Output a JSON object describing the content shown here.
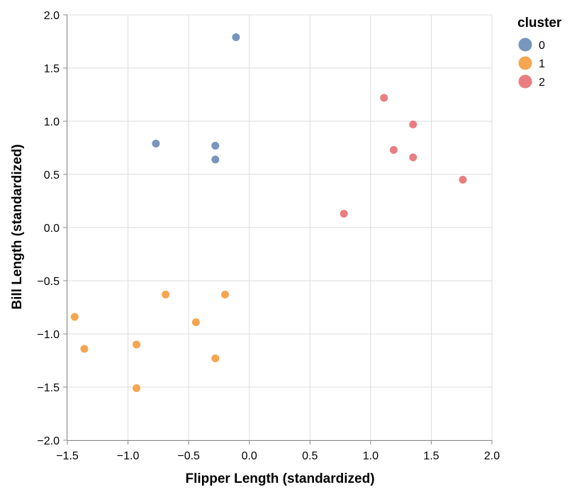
{
  "chart_data": {
    "type": "scatter",
    "xlabel": "Flipper Length (standardized)",
    "ylabel": "Bill Length (standardized)",
    "xlim": [
      -1.5,
      2.0
    ],
    "ylim": [
      -2.0,
      2.0
    ],
    "x_ticks": [
      "−1.5",
      "−1.0",
      "−0.5",
      "0.0",
      "0.5",
      "1.0",
      "1.5",
      "2.0"
    ],
    "x_tick_values": [
      -1.5,
      -1.0,
      -0.5,
      0.0,
      0.5,
      1.0,
      1.5,
      2.0
    ],
    "y_ticks": [
      "2.0",
      "1.5",
      "1.0",
      "0.5",
      "0.0",
      "−0.5",
      "−1.0",
      "−1.5",
      "−2.0"
    ],
    "y_tick_values": [
      2.0,
      1.5,
      1.0,
      0.5,
      0.0,
      -0.5,
      -1.0,
      -1.5,
      -2.0
    ],
    "grid": true,
    "legend": {
      "title": "cluster",
      "placement": "right",
      "entries": [
        {
          "label": "0",
          "color": "#7795bd"
        },
        {
          "label": "1",
          "color": "#f6a550"
        },
        {
          "label": "2",
          "color": "#e87e80"
        }
      ]
    },
    "series": [
      {
        "cluster": "0",
        "color": "#7795bd",
        "points": [
          {
            "x": -0.11,
            "y": 1.79
          },
          {
            "x": -0.77,
            "y": 0.79
          },
          {
            "x": -0.28,
            "y": 0.77
          },
          {
            "x": -0.28,
            "y": 0.64
          }
        ]
      },
      {
        "cluster": "1",
        "color": "#f6a550",
        "points": [
          {
            "x": -1.44,
            "y": -0.84
          },
          {
            "x": -1.36,
            "y": -1.14
          },
          {
            "x": -0.93,
            "y": -1.1
          },
          {
            "x": -0.93,
            "y": -1.51
          },
          {
            "x": -0.69,
            "y": -0.63
          },
          {
            "x": -0.44,
            "y": -0.89
          },
          {
            "x": -0.28,
            "y": -1.23
          },
          {
            "x": -0.2,
            "y": -0.63
          }
        ]
      },
      {
        "cluster": "2",
        "color": "#e87e80",
        "points": [
          {
            "x": 0.78,
            "y": 0.13
          },
          {
            "x": 1.11,
            "y": 1.22
          },
          {
            "x": 1.19,
            "y": 0.73
          },
          {
            "x": 1.35,
            "y": 0.97
          },
          {
            "x": 1.35,
            "y": 0.66
          },
          {
            "x": 1.76,
            "y": 0.45
          }
        ]
      }
    ]
  }
}
